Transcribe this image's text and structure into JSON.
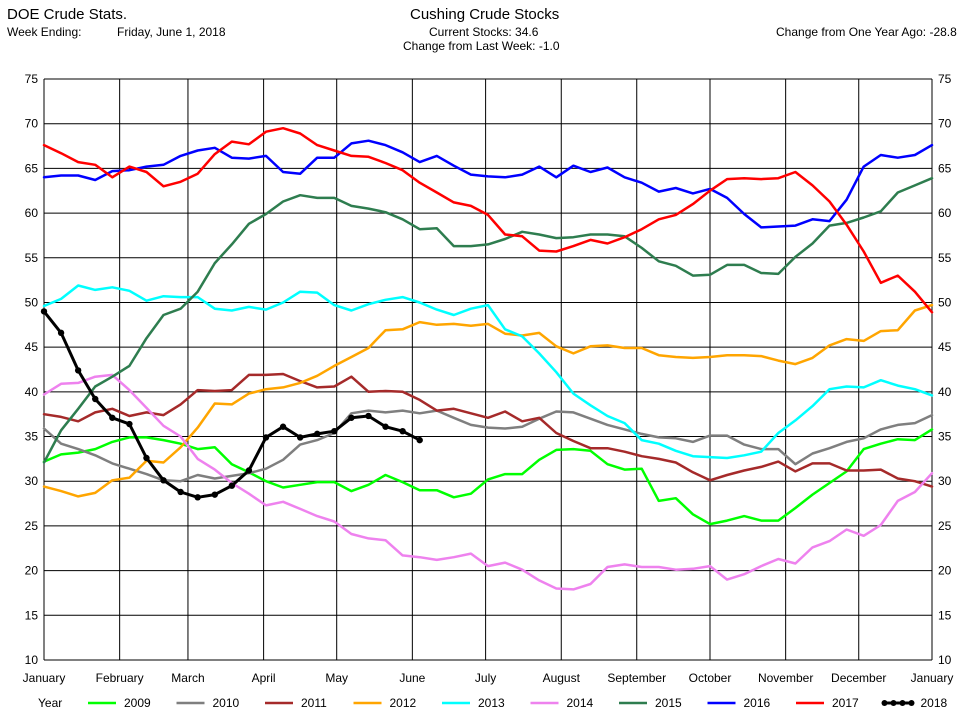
{
  "header": {
    "left_title": "DOE Crude Stats.",
    "week_label": "Week Ending:",
    "week_value": "Friday, June 1, 2018",
    "center_title": "Cushing Crude Stocks",
    "current_label": "Current Stocks:",
    "current_value": "34.6",
    "change_week_label": "Change from Last Week:",
    "change_week_value": "-1.0",
    "change_year_label": "Change from One Year Ago:",
    "change_year_value": "-28.8"
  },
  "legend": {
    "title": "Year"
  },
  "chart_data": {
    "type": "line",
    "x_unit": "week of year",
    "xlim": [
      0,
      52
    ],
    "ylim": [
      10,
      75
    ],
    "y_ticks": [
      10,
      15,
      20,
      25,
      30,
      35,
      40,
      45,
      50,
      55,
      60,
      65,
      70,
      75
    ],
    "y_axes": [
      "left",
      "right"
    ],
    "grid": true,
    "legend_position": "bottom",
    "x_tick_labels": [
      {
        "label": "January",
        "week": 0
      },
      {
        "label": "February",
        "week": 4.43
      },
      {
        "label": "March",
        "week": 8.43
      },
      {
        "label": "April",
        "week": 12.86
      },
      {
        "label": "May",
        "week": 17.14
      },
      {
        "label": "June",
        "week": 21.57
      },
      {
        "label": "July",
        "week": 25.86
      },
      {
        "label": "August",
        "week": 30.29
      },
      {
        "label": "September",
        "week": 34.71
      },
      {
        "label": "October",
        "week": 39
      },
      {
        "label": "November",
        "week": 43.43
      },
      {
        "label": "December",
        "week": 47.71
      },
      {
        "label": "January",
        "week": 52
      }
    ],
    "series": [
      {
        "name": "2009",
        "color": "#00ff00",
        "width": 2.5,
        "markers": false,
        "values": [
          32.2,
          33,
          33.2,
          33.6,
          34.4,
          34.9,
          34.9,
          34.6,
          34.2,
          33.6,
          33.8,
          31.9,
          31,
          30,
          29.3,
          29.6,
          29.9,
          29.9,
          28.9,
          29.6,
          30.7,
          29.9,
          29,
          29,
          28.2,
          28.6,
          30.2,
          30.8,
          30.8,
          32.4,
          33.5,
          33.6,
          33.4,
          31.9,
          31.3,
          31.4,
          27.8,
          28.1,
          26.3,
          25.2,
          25.6,
          26.1,
          25.6,
          25.6,
          27,
          28.5,
          29.8,
          31.1,
          33.6,
          34.2,
          34.7,
          34.6,
          35.8
        ]
      },
      {
        "name": "2010",
        "color": "#7f7f7f",
        "width": 2.5,
        "markers": false,
        "values": [
          35.9,
          34.2,
          33.6,
          32.9,
          32,
          31.4,
          30.8,
          30.1,
          30,
          30.7,
          30.3,
          30.6,
          30.9,
          31.4,
          32.4,
          34.1,
          34.6,
          35.4,
          37.6,
          37.9,
          37.7,
          37.9,
          37.6,
          37.9,
          37.1,
          36.3,
          36,
          35.9,
          36.1,
          37,
          37.8,
          37.7,
          37,
          36.3,
          35.8,
          35.3,
          34.9,
          34.8,
          34.4,
          35.1,
          35.1,
          34.1,
          33.6,
          33.6,
          31.9,
          33.1,
          33.7,
          34.4,
          34.8,
          35.8,
          36.3,
          36.5,
          37.4
        ]
      },
      {
        "name": "2011",
        "color": "#a52a2a",
        "width": 2.5,
        "markers": false,
        "values": [
          37.5,
          37.2,
          36.7,
          37.7,
          38.1,
          37.3,
          37.7,
          37.4,
          38.6,
          40.2,
          40.1,
          40.2,
          41.9,
          41.9,
          42,
          41.2,
          40.5,
          40.6,
          41.7,
          40,
          40.1,
          40,
          39.1,
          37.9,
          38.1,
          37.6,
          37.1,
          37.8,
          36.7,
          37.1,
          35.4,
          34.5,
          33.7,
          33.7,
          33.3,
          32.8,
          32.5,
          32.1,
          31,
          30.1,
          30.7,
          31.2,
          31.6,
          32.2,
          31.1,
          32,
          32,
          31.2,
          31.2,
          31.3,
          30.3,
          30,
          29.4
        ]
      },
      {
        "name": "2012",
        "color": "#ffa500",
        "width": 2.5,
        "markers": false,
        "values": [
          29.4,
          28.9,
          28.3,
          28.7,
          30.1,
          30.4,
          32.3,
          32.1,
          33.8,
          36,
          38.7,
          38.6,
          39.8,
          40.3,
          40.5,
          41,
          41.8,
          42.9,
          43.9,
          44.9,
          46.9,
          47,
          47.8,
          47.5,
          47.6,
          47.4,
          47.6,
          46.5,
          46.3,
          46.6,
          45.1,
          44.3,
          45.1,
          45.2,
          44.9,
          44.9,
          44.1,
          43.9,
          43.8,
          43.9,
          44.1,
          44.1,
          44,
          43.5,
          43.1,
          43.8,
          45.2,
          45.9,
          45.7,
          46.8,
          46.9,
          49.1,
          49.7
        ]
      },
      {
        "name": "2013",
        "color": "#00ffff",
        "width": 2.5,
        "markers": false,
        "values": [
          49.6,
          50.4,
          51.9,
          51.4,
          51.7,
          51.3,
          50.2,
          50.7,
          50.6,
          50.6,
          49.3,
          49.1,
          49.5,
          49.2,
          50,
          51.2,
          51.1,
          49.7,
          49.1,
          49.8,
          50.3,
          50.6,
          50,
          49.2,
          48.6,
          49.3,
          49.7,
          47,
          46.2,
          44.3,
          42.2,
          39.8,
          38.5,
          37.3,
          36.5,
          34.6,
          34.2,
          33.4,
          32.8,
          32.7,
          32.6,
          32.9,
          33.3,
          35.4,
          36.8,
          38.4,
          40.3,
          40.6,
          40.5,
          41.3,
          40.7,
          40.3,
          39.6
        ]
      },
      {
        "name": "2014",
        "color": "#ee82ee",
        "width": 2.5,
        "markers": false,
        "values": [
          39.7,
          40.9,
          41,
          41.7,
          41.9,
          40.2,
          38.2,
          36.2,
          35,
          32.5,
          31.3,
          29.8,
          28.6,
          27.3,
          27.7,
          26.9,
          26.1,
          25.5,
          24.1,
          23.6,
          23.4,
          21.7,
          21.5,
          21.2,
          21.5,
          21.9,
          20.5,
          20.9,
          20.1,
          18.9,
          18,
          17.9,
          18.5,
          20.4,
          20.7,
          20.4,
          20.4,
          20.1,
          20.2,
          20.5,
          19,
          19.6,
          20.5,
          21.3,
          20.8,
          22.6,
          23.3,
          24.6,
          23.9,
          25.1,
          27.8,
          28.8,
          30.9
        ]
      },
      {
        "name": "2015",
        "color": "#2e7d4f",
        "width": 2.5,
        "markers": false,
        "values": [
          32.1,
          35.7,
          38.1,
          40.6,
          41.7,
          42.9,
          46,
          48.6,
          49.3,
          51.2,
          54.4,
          56.5,
          58.8,
          59.9,
          61.3,
          62,
          61.7,
          61.7,
          60.8,
          60.5,
          60.1,
          59.3,
          58.2,
          58.3,
          56.3,
          56.3,
          56.5,
          57.1,
          57.9,
          57.6,
          57.2,
          57.3,
          57.6,
          57.6,
          57.4,
          56.1,
          54.6,
          54.1,
          53,
          53.1,
          54.2,
          54.2,
          53.3,
          53.2,
          55.1,
          56.6,
          58.6,
          58.9,
          59.5,
          60.2,
          62.3,
          63.1,
          63.9
        ]
      },
      {
        "name": "2016",
        "color": "#0000ff",
        "width": 2.5,
        "markers": false,
        "values": [
          64,
          64.2,
          64.2,
          63.7,
          64.7,
          64.8,
          65.2,
          65.4,
          66.4,
          67,
          67.3,
          66.2,
          66.1,
          66.4,
          64.6,
          64.4,
          66.2,
          66.2,
          67.8,
          68.1,
          67.6,
          66.8,
          65.7,
          66.4,
          65.3,
          64.3,
          64.1,
          64,
          64.3,
          65.2,
          64,
          65.3,
          64.6,
          65.1,
          64,
          63.4,
          62.4,
          62.8,
          62.2,
          62.7,
          61.7,
          59.9,
          58.4,
          58.5,
          58.6,
          59.3,
          59.1,
          61.5,
          65.2,
          66.5,
          66.2,
          66.5,
          67.6
        ]
      },
      {
        "name": "2017",
        "color": "#ff0000",
        "width": 2.5,
        "markers": false,
        "values": [
          67.6,
          66.7,
          65.7,
          65.4,
          64,
          65.2,
          64.6,
          63,
          63.5,
          64.4,
          66.6,
          68,
          67.7,
          69.1,
          69.5,
          68.9,
          67.6,
          67,
          66.4,
          66.3,
          65.6,
          64.8,
          63.4,
          62.3,
          61.2,
          60.8,
          59.8,
          57.6,
          57.4,
          55.8,
          55.7,
          56.3,
          57,
          56.6,
          57.3,
          58.2,
          59.3,
          59.8,
          61,
          62.5,
          63.8,
          63.9,
          63.8,
          63.9,
          64.6,
          63.1,
          61.3,
          58.7,
          55.7,
          52.2,
          53,
          51.2,
          48.9
        ]
      },
      {
        "name": "2018",
        "color": "#000000",
        "width": 3,
        "markers": true,
        "values": [
          49,
          46.6,
          42.4,
          39.2,
          37.1,
          36.4,
          32.6,
          30.1,
          28.8,
          28.2,
          28.5,
          29.5,
          31.2,
          34.9,
          36.1,
          34.9,
          35.3,
          35.6,
          37.1,
          37.3,
          36.1,
          35.6,
          34.6
        ]
      }
    ]
  }
}
